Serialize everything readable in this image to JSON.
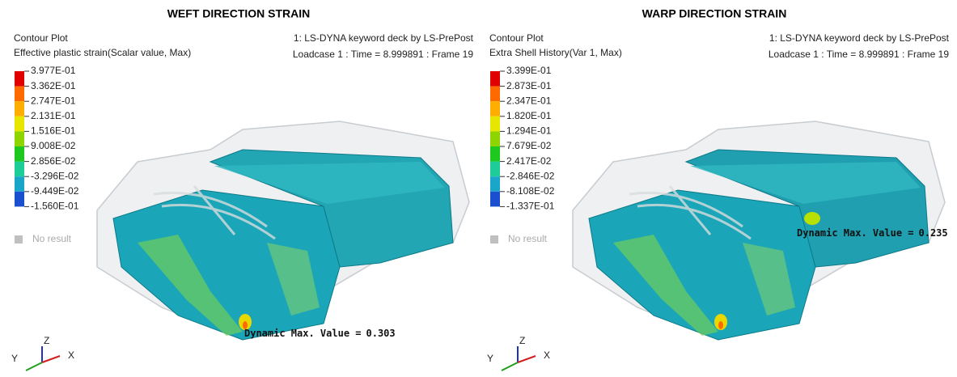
{
  "panels": [
    {
      "title": "WEFT DIRECTION STRAIN",
      "plot_label": "Contour Plot",
      "variable": "Effective plastic strain(Scalar value, Max)",
      "deck": "1: LS-DYNA keyword deck by LS-PrePost",
      "loadcase": "Loadcase 1 : Time = 8.999891 : Frame 19",
      "legend": [
        "3.977E-01",
        "3.362E-01",
        "2.747E-01",
        "2.131E-01",
        "1.516E-01",
        "9.008E-02",
        "2.856E-02",
        "-3.296E-02",
        "-9.449E-02",
        "-1.560E-01"
      ],
      "no_result": "No result",
      "max_label": "Dynamic Max. Value =",
      "max_value": 0.303,
      "axes": {
        "z": "Z",
        "y": "Y",
        "x": "X"
      }
    },
    {
      "title": "WARP DIRECTION STRAIN",
      "plot_label": "Contour Plot",
      "variable": "Extra Shell History(Var 1, Max)",
      "deck": "1: LS-DYNA keyword deck by LS-PrePost",
      "loadcase": "Loadcase 1 : Time = 8.999891 : Frame 19",
      "legend": [
        "3.399E-01",
        "2.873E-01",
        "2.347E-01",
        "1.820E-01",
        "1.294E-01",
        "7.679E-02",
        "2.417E-02",
        "-2.846E-02",
        "-8.108E-02",
        "-1.337E-01"
      ],
      "no_result": "No result",
      "max_label": "Dynamic Max. Value =",
      "max_value": 0.235,
      "axes": {
        "z": "Z",
        "y": "Y",
        "x": "X"
      }
    }
  ]
}
